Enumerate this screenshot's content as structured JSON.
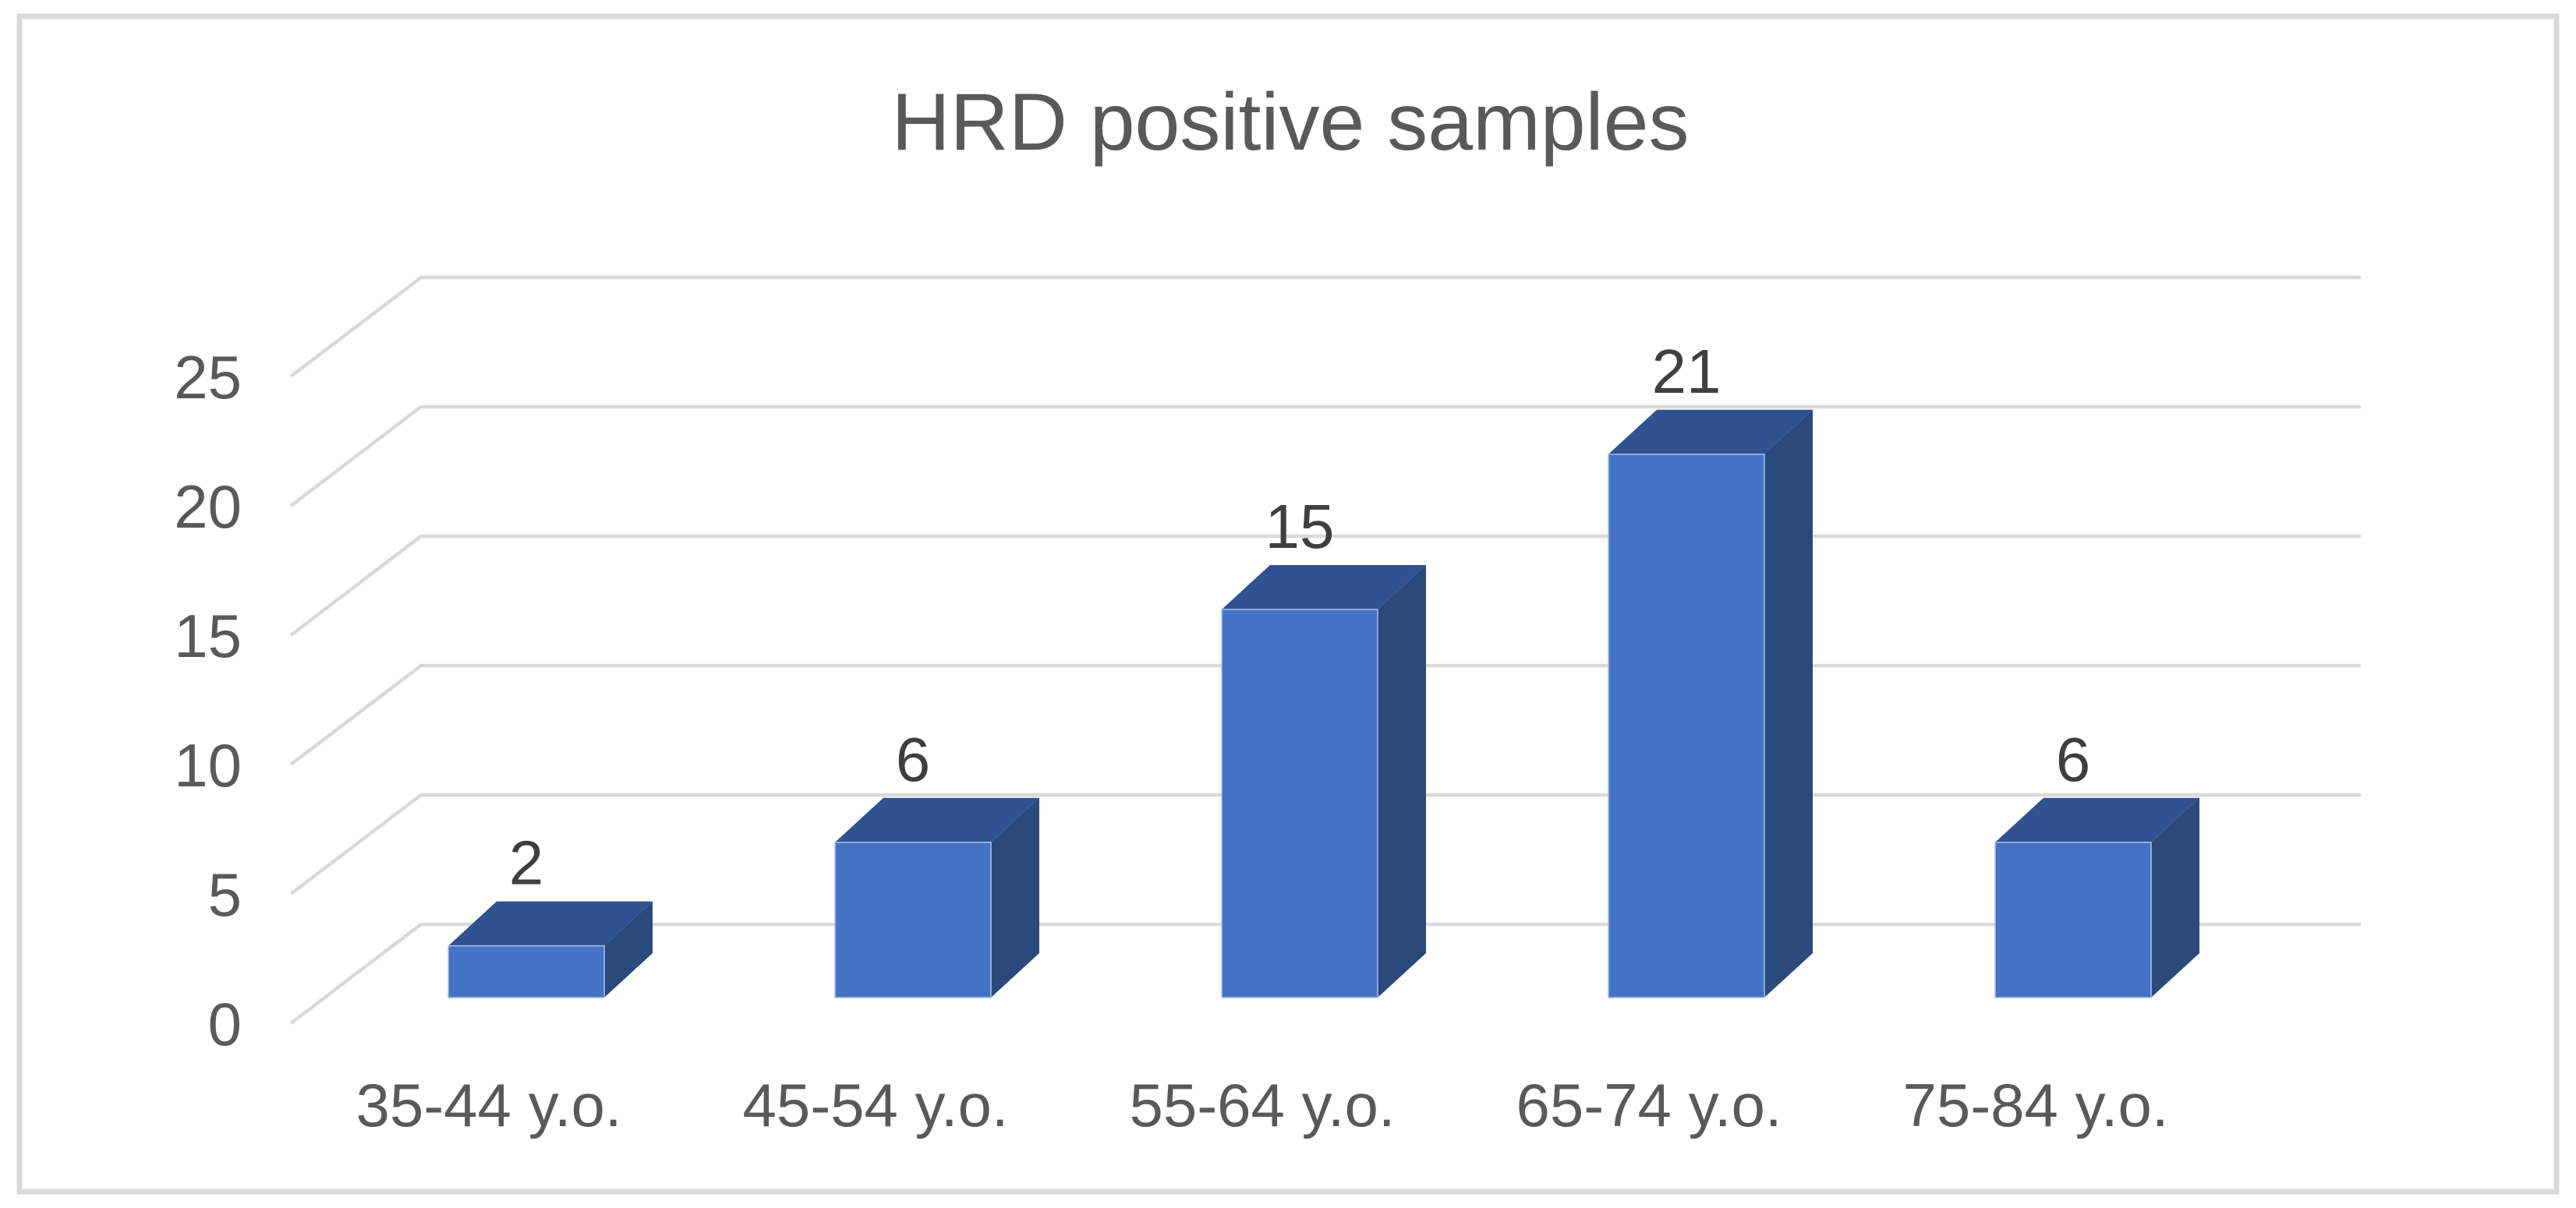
{
  "title": "HRD positive samples",
  "chart_data": {
    "type": "bar",
    "subtype": "3d-column",
    "title": "HRD positive samples",
    "categories": [
      "35-44 y.o.",
      "45-54 y.o.",
      "55-64 y.o.",
      "65-74 y.o.",
      "75-84 y.o."
    ],
    "values": [
      2,
      6,
      15,
      21,
      6
    ],
    "series": [
      {
        "name": "HRD positive samples",
        "values": [
          2,
          6,
          15,
          21,
          6
        ]
      }
    ],
    "data_labels_shown": true,
    "xlabel": "",
    "ylabel": "",
    "y_ticks": [
      0,
      5,
      10,
      15,
      20,
      25
    ],
    "ylim": [
      0,
      25
    ],
    "grid": true,
    "legend": false,
    "colors": {
      "bar_front": "#4472C4",
      "bar_top": "#2F5391",
      "bar_side": "#2A4A7C",
      "bar_edge_highlight": "#A9C1E8",
      "gridline": "#D9D9D9",
      "frame_border": "#D9D9D9",
      "axis_label": "#595959",
      "category_label": "#595959",
      "data_label": "#3F3F3F",
      "title": "#595959",
      "background": "#FFFFFF"
    }
  }
}
